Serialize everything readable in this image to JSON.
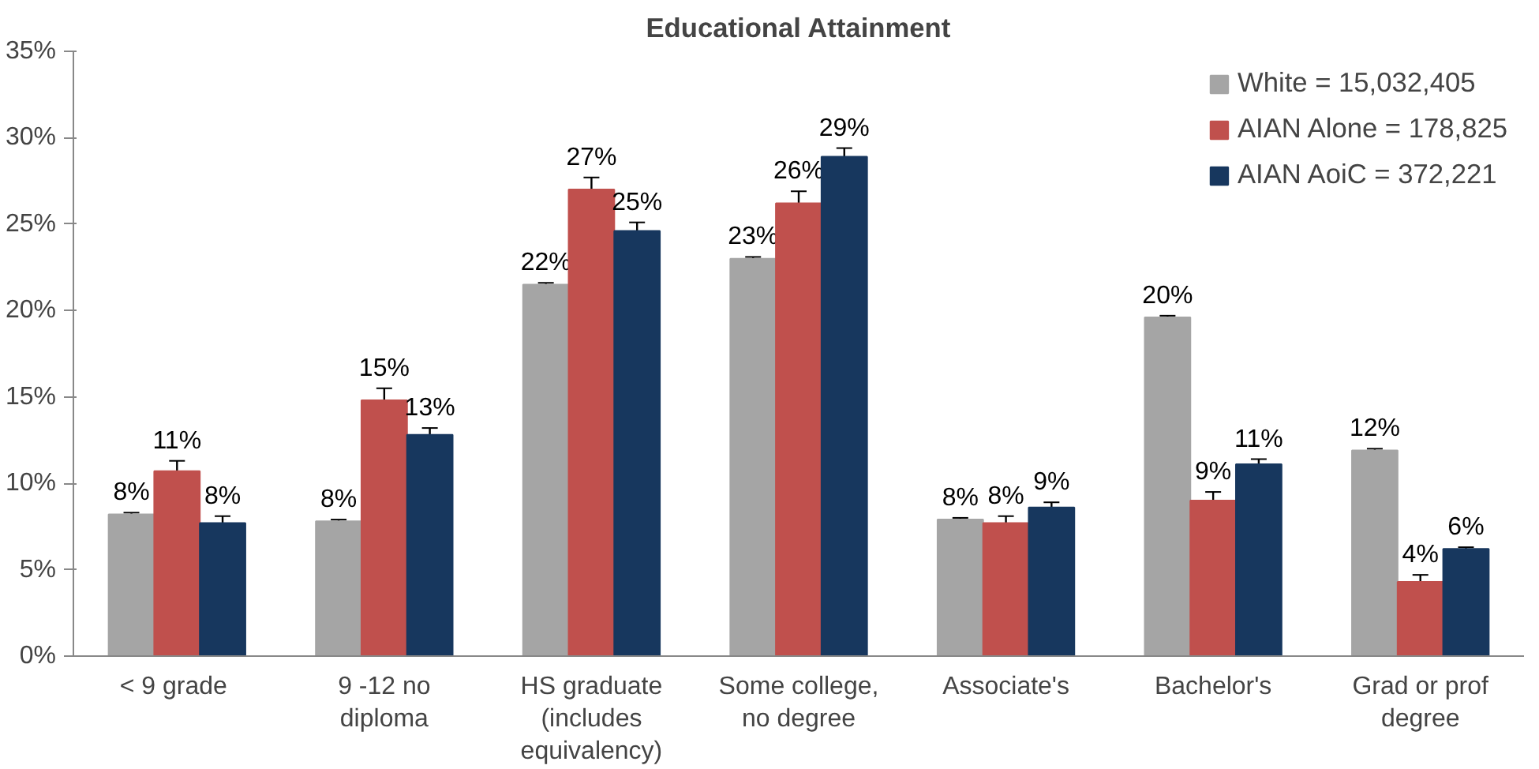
{
  "chart_data": {
    "type": "bar",
    "title": "Educational Attainment",
    "categories": [
      "<  9 grade",
      "9 -12 no\ndiploma",
      "HS graduate\n(includes\nequivalency)",
      "Some college,\nno degree",
      "Associate's",
      "Bachelor's",
      "Grad or prof\ndegree"
    ],
    "series": [
      {
        "name": "White = 15,032,405",
        "color": "#a5a5a5",
        "values": [
          8.2,
          7.8,
          21.5,
          23.0,
          7.9,
          19.6,
          11.9
        ],
        "errors": [
          0.1,
          0.1,
          0.1,
          0.1,
          0.1,
          0.1,
          0.1
        ],
        "value_labels": [
          "8%",
          "8%",
          "22%",
          "23%",
          "8%",
          "20%",
          "12%"
        ]
      },
      {
        "name": "AIAN Alone = 178,825",
        "color": "#c0504d",
        "values": [
          10.7,
          14.8,
          27.0,
          26.2,
          7.7,
          9.0,
          4.3
        ],
        "errors": [
          0.6,
          0.7,
          0.7,
          0.7,
          0.4,
          0.5,
          0.4
        ],
        "value_labels": [
          "11%",
          "15%",
          "27%",
          "26%",
          "8%",
          "9%",
          "4%"
        ]
      },
      {
        "name": "AIAN AoiC = 372,221",
        "color": "#17375e",
        "values": [
          7.7,
          12.8,
          24.6,
          28.9,
          8.6,
          11.1,
          6.2
        ],
        "errors": [
          0.4,
          0.4,
          0.5,
          0.5,
          0.3,
          0.3,
          0.1
        ],
        "value_labels": [
          "8%",
          "13%",
          "25%",
          "29%",
          "9%",
          "11%",
          "6%"
        ]
      }
    ],
    "ylim": [
      0,
      35
    ],
    "yticks": [
      {
        "value": 0,
        "label": "0%"
      },
      {
        "value": 5,
        "label": "5%"
      },
      {
        "value": 10,
        "label": "10%"
      },
      {
        "value": 15,
        "label": "15%"
      },
      {
        "value": 20,
        "label": "20%"
      },
      {
        "value": 25,
        "label": "25%"
      },
      {
        "value": 30,
        "label": "30%"
      },
      {
        "value": 35,
        "label": "35%"
      }
    ],
    "legend": "top right",
    "grid": false
  }
}
